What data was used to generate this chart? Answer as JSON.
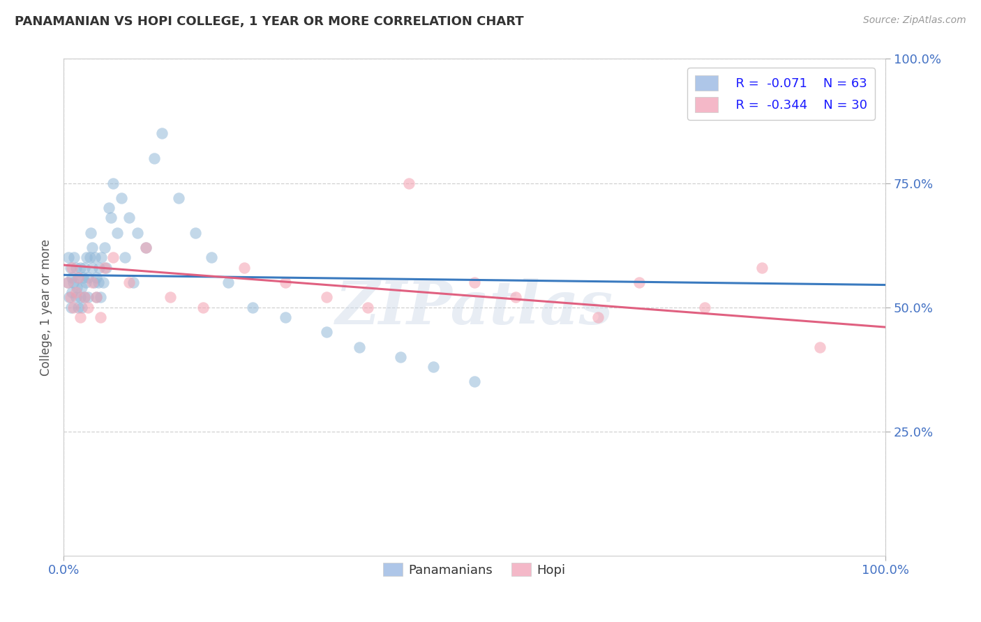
{
  "title": "PANAMANIAN VS HOPI COLLEGE, 1 YEAR OR MORE CORRELATION CHART",
  "source": "Source: ZipAtlas.com",
  "ylabel": "College, 1 year or more",
  "xlim": [
    0.0,
    1.0
  ],
  "ylim": [
    0.0,
    1.0
  ],
  "watermark": "ZIPatlas",
  "pan_R": -0.071,
  "pan_N": 63,
  "hopi_R": -0.344,
  "hopi_N": 30,
  "panamanian_color": "#92b8d8",
  "hopi_color": "#f4a0b0",
  "panamanian_line_color": "#3a7abf",
  "hopi_line_color": "#e06080",
  "background_color": "#ffffff",
  "grid_color": "#cccccc",
  "title_color": "#333333",
  "axis_label_color": "#555555",
  "tick_label_color": "#4472c4",
  "legend_patch_blue": "#aec6e8",
  "legend_patch_pink": "#f4b8c8",
  "pan_x": [
    0.005,
    0.006,
    0.007,
    0.008,
    0.009,
    0.01,
    0.01,
    0.012,
    0.013,
    0.015,
    0.015,
    0.016,
    0.018,
    0.018,
    0.02,
    0.02,
    0.022,
    0.022,
    0.024,
    0.025,
    0.025,
    0.027,
    0.028,
    0.03,
    0.03,
    0.032,
    0.033,
    0.035,
    0.035,
    0.037,
    0.038,
    0.04,
    0.04,
    0.042,
    0.043,
    0.045,
    0.046,
    0.048,
    0.05,
    0.052,
    0.055,
    0.058,
    0.06,
    0.065,
    0.07,
    0.075,
    0.08,
    0.085,
    0.09,
    0.1,
    0.11,
    0.12,
    0.14,
    0.16,
    0.18,
    0.2,
    0.23,
    0.27,
    0.32,
    0.36,
    0.41,
    0.45,
    0.5
  ],
  "pan_y": [
    0.55,
    0.6,
    0.52,
    0.58,
    0.5,
    0.53,
    0.56,
    0.55,
    0.6,
    0.52,
    0.58,
    0.54,
    0.5,
    0.56,
    0.52,
    0.58,
    0.5,
    0.54,
    0.56,
    0.52,
    0.58,
    0.55,
    0.6,
    0.52,
    0.56,
    0.6,
    0.65,
    0.58,
    0.62,
    0.55,
    0.6,
    0.52,
    0.56,
    0.55,
    0.58,
    0.52,
    0.6,
    0.55,
    0.62,
    0.58,
    0.7,
    0.68,
    0.75,
    0.65,
    0.72,
    0.6,
    0.68,
    0.55,
    0.65,
    0.62,
    0.8,
    0.85,
    0.72,
    0.65,
    0.6,
    0.55,
    0.5,
    0.48,
    0.45,
    0.42,
    0.4,
    0.38,
    0.35
  ],
  "hopi_x": [
    0.005,
    0.008,
    0.01,
    0.012,
    0.015,
    0.018,
    0.02,
    0.025,
    0.03,
    0.035,
    0.04,
    0.045,
    0.05,
    0.06,
    0.08,
    0.1,
    0.13,
    0.17,
    0.22,
    0.27,
    0.32,
    0.37,
    0.42,
    0.5,
    0.55,
    0.65,
    0.7,
    0.78,
    0.85,
    0.92
  ],
  "hopi_y": [
    0.55,
    0.52,
    0.58,
    0.5,
    0.53,
    0.56,
    0.48,
    0.52,
    0.5,
    0.55,
    0.52,
    0.48,
    0.58,
    0.6,
    0.55,
    0.62,
    0.52,
    0.5,
    0.58,
    0.55,
    0.52,
    0.5,
    0.75,
    0.55,
    0.52,
    0.48,
    0.55,
    0.5,
    0.58,
    0.42
  ]
}
